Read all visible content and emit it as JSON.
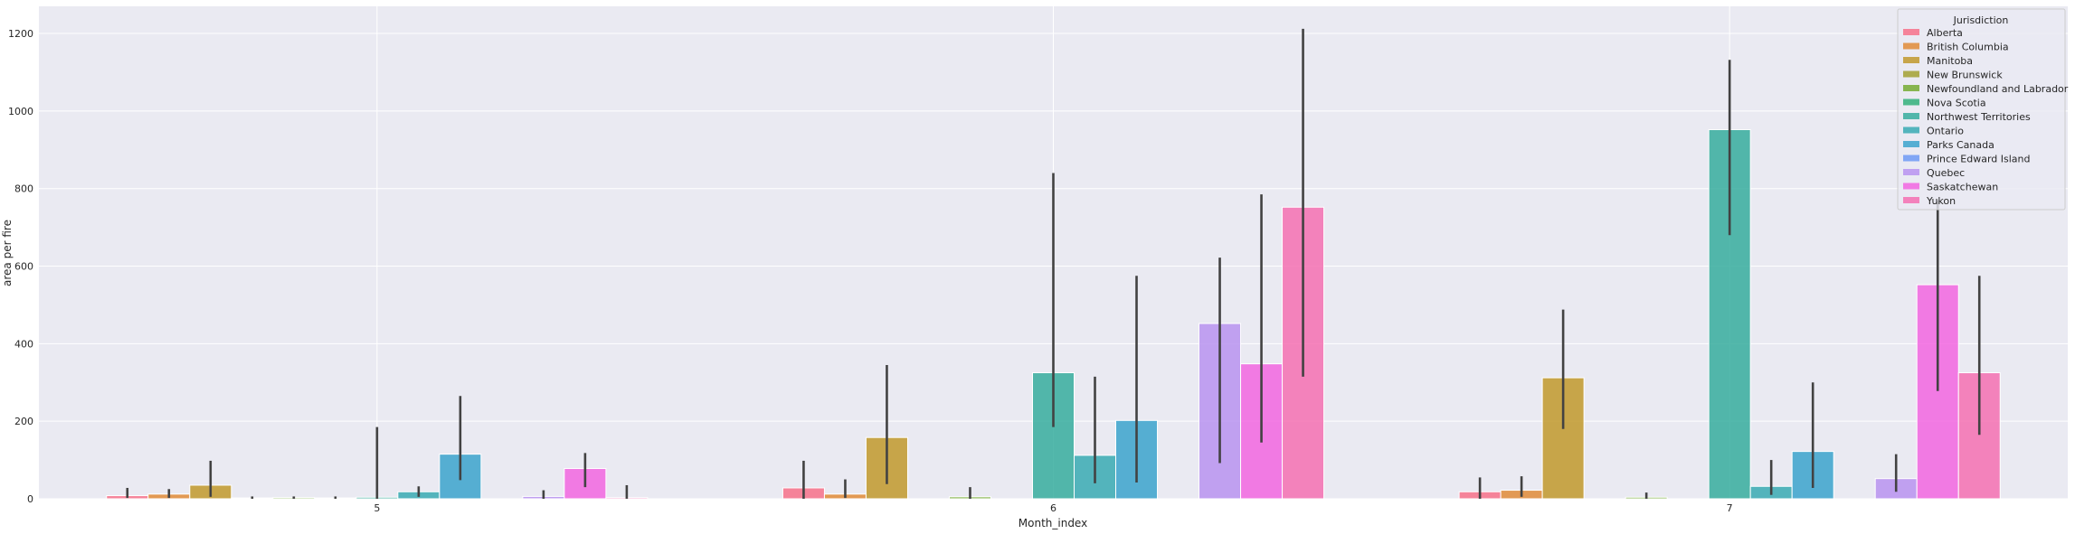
{
  "chart_data": {
    "type": "bar",
    "xlabel": "Month_index",
    "ylabel": "area per fire",
    "categories": [
      "5",
      "6",
      "7"
    ],
    "ylim": [
      0,
      1270
    ],
    "yticks": [
      0,
      200,
      400,
      600,
      800,
      1000,
      1200
    ],
    "grid": true,
    "background": "#eaeaf2",
    "legend": {
      "title": "Jurisdiction",
      "placement": "top-right"
    },
    "series": [
      {
        "name": "Alberta",
        "color": "#f77189",
        "values": [
          8,
          28,
          18
        ],
        "ci_low": [
          2,
          0,
          0
        ],
        "ci_high": [
          28,
          98,
          55
        ]
      },
      {
        "name": "British Columbia",
        "color": "#e08b37",
        "values": [
          12,
          12,
          22
        ],
        "ci_low": [
          2,
          2,
          5
        ],
        "ci_high": [
          25,
          50,
          58
        ]
      },
      {
        "name": "Manitoba",
        "color": "#c1992b",
        "values": [
          35,
          158,
          312
        ],
        "ci_low": [
          5,
          38,
          180
        ],
        "ci_high": [
          98,
          345,
          488
        ]
      },
      {
        "name": "New Brunswick",
        "color": "#a3a131",
        "values": [
          2,
          0,
          0
        ],
        "ci_low": [
          0,
          0,
          0
        ],
        "ci_high": [
          6,
          0,
          0
        ]
      },
      {
        "name": "Newfoundland and Labrador",
        "color": "#75ac32",
        "values": [
          3,
          5,
          4
        ],
        "ci_low": [
          0,
          0,
          0
        ],
        "ci_high": [
          6,
          30,
          16
        ]
      },
      {
        "name": "Nova Scotia",
        "color": "#33b07a",
        "values": [
          2,
          0,
          0
        ],
        "ci_low": [
          0,
          0,
          0
        ],
        "ci_high": [
          6,
          0,
          0
        ]
      },
      {
        "name": "Northwest Territories",
        "color": "#36ad9e",
        "values": [
          4,
          325,
          952
        ],
        "ci_low": [
          0,
          185,
          680
        ],
        "ci_high": [
          185,
          840,
          1132
        ]
      },
      {
        "name": "Ontario",
        "color": "#38aab3",
        "values": [
          18,
          112,
          32
        ],
        "ci_low": [
          5,
          40,
          10
        ],
        "ci_high": [
          32,
          315,
          100
        ]
      },
      {
        "name": "Parks Canada",
        "color": "#3ba3cc",
        "values": [
          115,
          202,
          122
        ],
        "ci_low": [
          48,
          42,
          28
        ],
        "ci_high": [
          265,
          575,
          300
        ]
      },
      {
        "name": "Prince Edward Island",
        "color": "#6e9af5",
        "values": [
          0,
          0,
          0
        ],
        "ci_low": [
          0,
          0,
          0
        ],
        "ci_high": [
          0,
          0,
          0
        ]
      },
      {
        "name": "Quebec",
        "color": "#b893f0",
        "values": [
          6,
          452,
          52
        ],
        "ci_low": [
          0,
          92,
          18
        ],
        "ci_high": [
          22,
          622,
          115
        ]
      },
      {
        "name": "Saskatchewan",
        "color": "#f266e1",
        "values": [
          78,
          348,
          552
        ],
        "ci_low": [
          30,
          145,
          278
        ],
        "ci_high": [
          118,
          785,
          770
        ]
      },
      {
        "name": "Yukon",
        "color": "#f570b2",
        "values": [
          3,
          752,
          325
        ],
        "ci_low": [
          0,
          315,
          165
        ],
        "ci_high": [
          35,
          1212,
          575
        ]
      }
    ]
  }
}
